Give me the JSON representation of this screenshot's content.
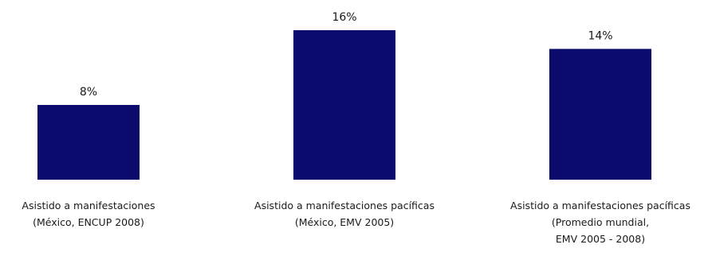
{
  "chart_data": {
    "type": "bar",
    "categories": [
      [
        "Asistido a manifestaciones",
        "(México, ENCUP 2008)"
      ],
      [
        "Asistido a manifestaciones pacíficas",
        "(México, EMV 2005)"
      ],
      [
        "Asistido a manifestaciones pacíficas",
        "(Promedio mundial,",
        "EMV 2005 - 2008)"
      ]
    ],
    "values": [
      8,
      16,
      14
    ],
    "value_labels": [
      "8%",
      "16%",
      "14%"
    ],
    "bar_color": "#0b0b6e",
    "grid": false,
    "legend": "none"
  }
}
